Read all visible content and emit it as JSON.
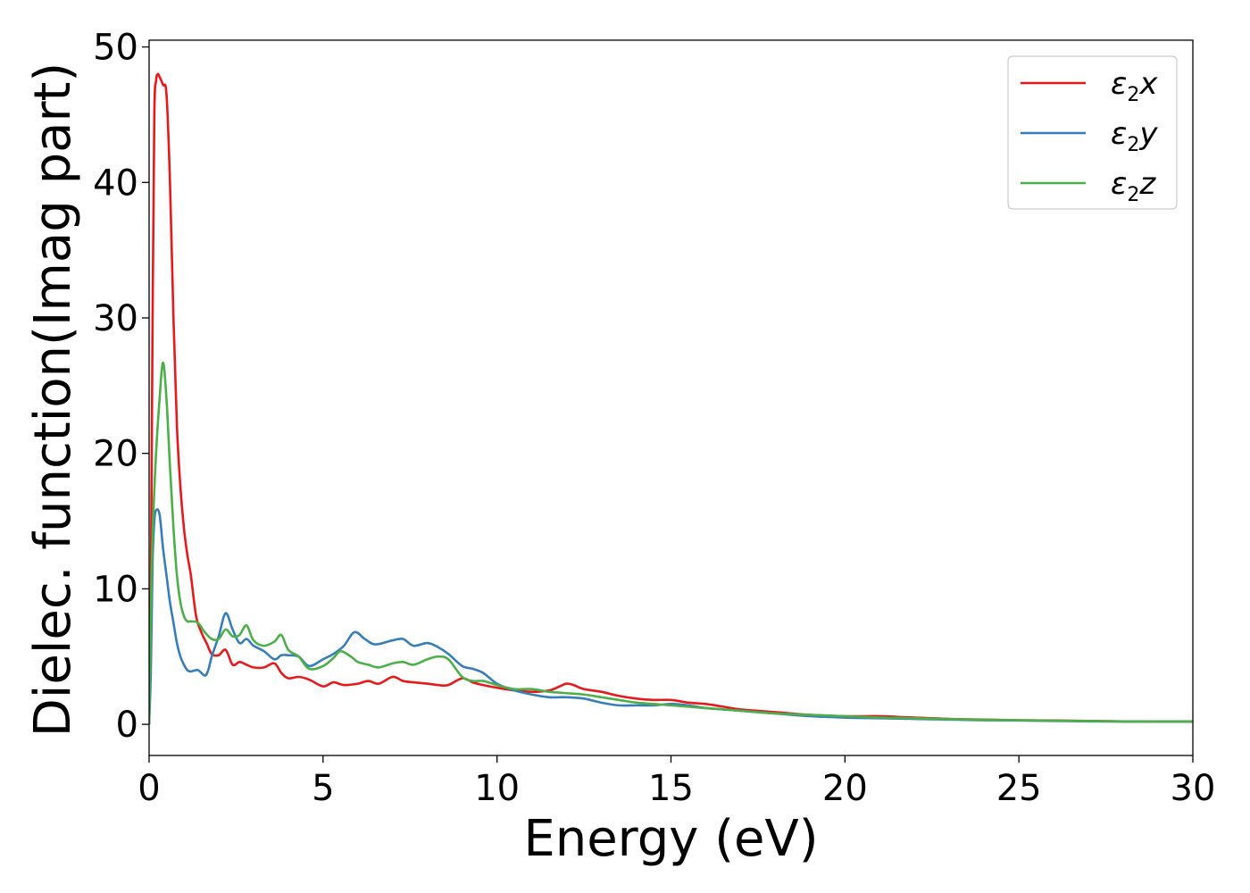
{
  "chart_data": {
    "type": "line",
    "title": "",
    "xlabel": "Energy (eV)",
    "ylabel": "Dielec. function(Imag part)",
    "xlim": [
      0,
      30
    ],
    "ylim": [
      -2.3,
      50.5
    ],
    "xticks": [
      0,
      5,
      10,
      15,
      20,
      25,
      30
    ],
    "xtick_labels": [
      "0",
      "5",
      "10",
      "15",
      "20",
      "25",
      "30"
    ],
    "yticks": [
      0,
      10,
      20,
      30,
      40,
      50
    ],
    "ytick_labels": [
      "0",
      "10",
      "20",
      "30",
      "40",
      "50"
    ],
    "grid": false,
    "legend_position": "top-right",
    "series": [
      {
        "name": "ε2x",
        "legend_main": "ε",
        "legend_sub": "2",
        "legend_tail": "x",
        "color": "#e41a1c",
        "x": [
          0,
          0.05,
          0.1,
          0.15,
          0.2,
          0.25,
          0.3,
          0.4,
          0.5,
          0.6,
          0.7,
          0.8,
          0.9,
          1.0,
          1.1,
          1.2,
          1.35,
          1.5,
          1.65,
          1.8,
          2.0,
          2.2,
          2.4,
          2.6,
          2.8,
          3.0,
          3.3,
          3.6,
          3.8,
          4.0,
          4.3,
          4.6,
          5.0,
          5.3,
          5.6,
          6.0,
          6.3,
          6.6,
          7.0,
          7.3,
          7.6,
          8.0,
          8.3,
          8.6,
          9.0,
          9.3,
          9.6,
          10.0,
          10.5,
          11.0,
          11.5,
          11.8,
          12.0,
          12.2,
          12.5,
          13.0,
          13.5,
          14.0,
          14.5,
          15.0,
          15.5,
          16.0,
          16.5,
          17.0,
          18.0,
          19.0,
          20.0,
          21.0,
          21.5,
          22.0,
          23.0,
          24.0,
          25.0,
          26.0,
          27.0,
          28.0,
          29.0,
          30.0
        ],
        "y": [
          0,
          10,
          30,
          45,
          47.5,
          48.0,
          47.8,
          47.2,
          46.5,
          40,
          30,
          22,
          17.5,
          14.5,
          12.5,
          11,
          8,
          6.8,
          6,
          5.2,
          5.1,
          5.5,
          4.4,
          4.6,
          4.4,
          4.2,
          4.2,
          4.5,
          3.8,
          3.4,
          3.5,
          3.3,
          2.8,
          3.1,
          2.9,
          3.0,
          3.2,
          3.0,
          3.5,
          3.2,
          3.1,
          3.0,
          2.9,
          2.9,
          3.4,
          3.1,
          2.9,
          2.7,
          2.5,
          2.4,
          2.5,
          2.8,
          3.0,
          2.9,
          2.6,
          2.4,
          2.1,
          1.9,
          1.8,
          1.8,
          1.6,
          1.5,
          1.3,
          1.1,
          0.9,
          0.7,
          0.6,
          0.6,
          0.55,
          0.5,
          0.4,
          0.35,
          0.3,
          0.28,
          0.25,
          0.22,
          0.2,
          0.2
        ]
      },
      {
        "name": "ε2y",
        "legend_main": "ε",
        "legend_sub": "2",
        "legend_tail": "y",
        "color": "#377eb8",
        "x": [
          0,
          0.05,
          0.1,
          0.15,
          0.2,
          0.3,
          0.4,
          0.5,
          0.6,
          0.7,
          0.8,
          0.9,
          1.0,
          1.1,
          1.2,
          1.4,
          1.6,
          1.7,
          1.8,
          2.0,
          2.2,
          2.4,
          2.6,
          2.8,
          3.0,
          3.3,
          3.6,
          3.8,
          4.0,
          4.3,
          4.6,
          5.0,
          5.3,
          5.6,
          5.9,
          6.2,
          6.5,
          7.0,
          7.3,
          7.6,
          8.0,
          8.3,
          8.6,
          9.0,
          9.3,
          9.6,
          10.0,
          10.5,
          11.0,
          11.5,
          12.0,
          12.5,
          13.0,
          13.5,
          14.0,
          14.5,
          15.0,
          15.5,
          16.0,
          16.5,
          17.0,
          18.0,
          19.0,
          20.0,
          21.0,
          22.0,
          23.0,
          24.0,
          25.0,
          26.0,
          27.0,
          28.0,
          29.0,
          30.0
        ],
        "y": [
          0,
          4,
          12,
          15,
          15.8,
          15.5,
          13,
          11,
          9,
          7.5,
          6,
          5,
          4.4,
          4.0,
          3.9,
          4.0,
          3.6,
          4.0,
          5.0,
          6.5,
          8.2,
          7.0,
          6.0,
          6.3,
          5.8,
          5.4,
          4.8,
          5.1,
          5.1,
          5.0,
          4.3,
          4.8,
          5.2,
          5.8,
          6.8,
          6.3,
          5.9,
          6.2,
          6.3,
          5.8,
          6.0,
          5.7,
          5.2,
          4.3,
          4.1,
          3.8,
          3.0,
          2.5,
          2.2,
          2.0,
          2.0,
          1.9,
          1.6,
          1.4,
          1.4,
          1.4,
          1.5,
          1.4,
          1.2,
          1.1,
          1.0,
          0.8,
          0.6,
          0.5,
          0.45,
          0.4,
          0.35,
          0.3,
          0.28,
          0.25,
          0.22,
          0.2,
          0.2,
          0.2
        ]
      },
      {
        "name": "ε2z",
        "legend_main": "ε",
        "legend_sub": "2",
        "legend_tail": "z",
        "color": "#4daf4a",
        "x": [
          0,
          0.05,
          0.1,
          0.2,
          0.3,
          0.4,
          0.5,
          0.6,
          0.7,
          0.8,
          0.9,
          1.0,
          1.1,
          1.2,
          1.4,
          1.6,
          1.8,
          2.0,
          2.2,
          2.4,
          2.6,
          2.8,
          3.0,
          3.3,
          3.6,
          3.8,
          4.0,
          4.3,
          4.6,
          5.0,
          5.3,
          5.5,
          5.8,
          6.0,
          6.3,
          6.6,
          7.0,
          7.3,
          7.6,
          8.0,
          8.3,
          8.6,
          9.0,
          9.3,
          9.6,
          10.0,
          10.5,
          11.0,
          11.5,
          12.0,
          12.5,
          13.0,
          13.5,
          14.0,
          14.5,
          15.0,
          15.5,
          16.0,
          16.5,
          17.0,
          18.0,
          19.0,
          20.0,
          21.0,
          22.0,
          23.0,
          24.0,
          25.0,
          26.0,
          27.0,
          28.0,
          29.0,
          30.0
        ],
        "y": [
          0,
          8,
          14,
          20,
          24,
          26.7,
          24,
          19,
          14.5,
          11,
          9,
          8,
          7.6,
          7.6,
          7.5,
          6.8,
          6.3,
          6.3,
          7.0,
          6.5,
          6.6,
          7.3,
          6.2,
          5.8,
          6.1,
          6.6,
          5.5,
          5.0,
          4.1,
          4.3,
          4.9,
          5.4,
          5.0,
          4.6,
          4.4,
          4.2,
          4.5,
          4.6,
          4.4,
          4.8,
          5.0,
          4.8,
          3.5,
          3.2,
          3.2,
          2.9,
          2.6,
          2.6,
          2.4,
          2.3,
          2.2,
          2.0,
          1.8,
          1.6,
          1.5,
          1.4,
          1.3,
          1.2,
          1.1,
          1.0,
          0.8,
          0.7,
          0.6,
          0.5,
          0.45,
          0.38,
          0.33,
          0.3,
          0.27,
          0.24,
          0.22,
          0.2,
          0.2
        ]
      }
    ]
  }
}
